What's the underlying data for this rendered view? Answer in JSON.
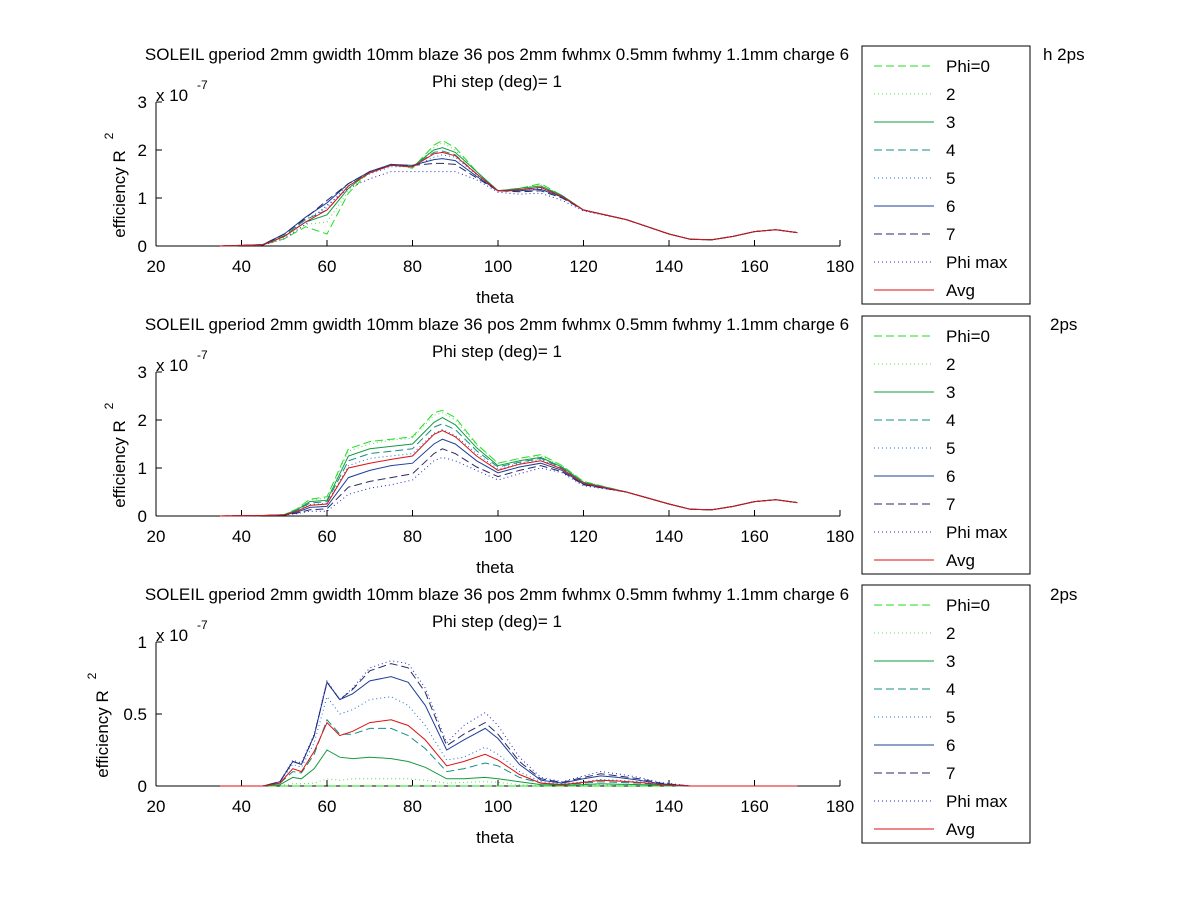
{
  "figure": {
    "background": "#ffffff"
  },
  "legend_entries": [
    "Phi=0",
    "2",
    "3",
    "4",
    "5",
    "6",
    "7",
    "Phi max",
    "Avg"
  ],
  "series_styles": [
    {
      "color": "#22dd22",
      "dash": "8,4"
    },
    {
      "color": "#55dd55",
      "dash": "1,3"
    },
    {
      "color": "#129b40",
      "dash": ""
    },
    {
      "color": "#158f84",
      "dash": "8,4"
    },
    {
      "color": "#1a6fd8",
      "dash": "1,3"
    },
    {
      "color": "#1c3f99",
      "dash": ""
    },
    {
      "color": "#2a2a66",
      "dash": "8,4"
    },
    {
      "color": "#1d2bc6",
      "dash": "1,3"
    },
    {
      "color": "#dd1111",
      "dash": ""
    }
  ],
  "chart_data": [
    {
      "type": "line",
      "title": "SOLEIL gperiod 2mm gwidth 10mm blaze 36 pos 2mm fwhmx 0.5mm fwhmy 1.1mm charge 6",
      "title_tail": "h 2ps",
      "subtitle": "Phi step (deg)= 1",
      "xlabel": "theta",
      "ylabel": "efficiency R",
      "ylabel_sup": "2",
      "exponent_label": "x 10",
      "exponent_sup": "-7",
      "xlim": [
        20,
        180
      ],
      "ylim": [
        0,
        3
      ],
      "xticks": [
        20,
        40,
        60,
        80,
        100,
        120,
        140,
        160,
        180
      ],
      "yticks": [
        0,
        1,
        2,
        3
      ],
      "ytick_labels": [
        "0",
        "1",
        "2",
        "3"
      ],
      "x": [
        35,
        45,
        50,
        55,
        60,
        65,
        70,
        75,
        80,
        85,
        87,
        90,
        95,
        100,
        105,
        110,
        115,
        120,
        130,
        140,
        145,
        150,
        155,
        160,
        165,
        170
      ],
      "series": [
        {
          "values": [
            0,
            0.02,
            0.15,
            0.4,
            0.25,
            1.1,
            1.55,
            1.7,
            1.62,
            2.1,
            2.2,
            2.05,
            1.55,
            1.15,
            1.2,
            1.3,
            1.05,
            0.75,
            0.55,
            0.25,
            0.14,
            0.13,
            0.2,
            0.3,
            0.34,
            0.28
          ]
        },
        {
          "values": [
            0,
            0.02,
            0.18,
            0.45,
            0.5,
            1.15,
            1.55,
            1.7,
            1.62,
            2.05,
            2.15,
            2.0,
            1.55,
            1.15,
            1.2,
            1.28,
            1.05,
            0.75,
            0.55,
            0.25,
            0.14,
            0.13,
            0.2,
            0.3,
            0.34,
            0.28
          ]
        },
        {
          "values": [
            0,
            0.02,
            0.2,
            0.5,
            0.65,
            1.2,
            1.55,
            1.68,
            1.65,
            2.0,
            2.05,
            1.95,
            1.55,
            1.15,
            1.2,
            1.25,
            1.05,
            0.75,
            0.55,
            0.25,
            0.14,
            0.13,
            0.2,
            0.3,
            0.34,
            0.28
          ]
        },
        {
          "values": [
            0,
            0.02,
            0.22,
            0.55,
            0.75,
            1.25,
            1.55,
            1.7,
            1.65,
            1.95,
            1.98,
            1.9,
            1.5,
            1.15,
            1.18,
            1.22,
            1.05,
            0.75,
            0.55,
            0.25,
            0.14,
            0.13,
            0.2,
            0.3,
            0.34,
            0.28
          ]
        },
        {
          "values": [
            0,
            0.02,
            0.2,
            0.55,
            0.8,
            1.3,
            1.5,
            1.65,
            1.65,
            1.85,
            1.9,
            1.85,
            1.48,
            1.15,
            1.15,
            1.2,
            1.02,
            0.75,
            0.55,
            0.25,
            0.14,
            0.13,
            0.2,
            0.3,
            0.34,
            0.28
          ]
        },
        {
          "values": [
            0,
            0.03,
            0.25,
            0.6,
            0.9,
            1.3,
            1.55,
            1.7,
            1.68,
            1.8,
            1.82,
            1.78,
            1.45,
            1.15,
            1.15,
            1.18,
            1.02,
            0.75,
            0.55,
            0.25,
            0.14,
            0.13,
            0.2,
            0.3,
            0.34,
            0.28
          ]
        },
        {
          "values": [
            0,
            0.03,
            0.25,
            0.58,
            0.95,
            1.3,
            1.55,
            1.68,
            1.68,
            1.72,
            1.72,
            1.7,
            1.42,
            1.15,
            1.13,
            1.15,
            1.0,
            0.75,
            0.55,
            0.25,
            0.14,
            0.13,
            0.2,
            0.3,
            0.34,
            0.28
          ]
        },
        {
          "values": [
            0,
            0.02,
            0.15,
            0.45,
            0.85,
            1.2,
            1.4,
            1.55,
            1.55,
            1.55,
            1.55,
            1.55,
            1.38,
            1.12,
            1.08,
            1.1,
            0.95,
            0.73,
            0.55,
            0.25,
            0.14,
            0.13,
            0.2,
            0.3,
            0.34,
            0.28
          ]
        },
        {
          "values": [
            0,
            0.02,
            0.2,
            0.5,
            0.75,
            1.25,
            1.52,
            1.68,
            1.65,
            1.92,
            1.95,
            1.88,
            1.5,
            1.15,
            1.17,
            1.22,
            1.03,
            0.75,
            0.55,
            0.25,
            0.14,
            0.13,
            0.2,
            0.3,
            0.34,
            0.28
          ]
        }
      ]
    },
    {
      "type": "line",
      "title": "SOLEIL gperiod 2mm gwidth 10mm blaze 36 pos 2mm fwhmx 0.5mm fwhmy 1.1mm charge 6",
      "title_tail": "2ps",
      "subtitle": "Phi step (deg)= 1",
      "xlabel": "theta",
      "ylabel": "efficiency R",
      "ylabel_sup": "2",
      "exponent_label": "x 10",
      "exponent_sup": "-7",
      "xlim": [
        20,
        180
      ],
      "ylim": [
        0,
        3
      ],
      "xticks": [
        20,
        40,
        60,
        80,
        100,
        120,
        140,
        160,
        180
      ],
      "yticks": [
        0,
        1,
        2,
        3
      ],
      "ytick_labels": [
        "0",
        "1",
        "2",
        "3"
      ],
      "x": [
        35,
        45,
        50,
        53,
        56,
        60,
        65,
        70,
        75,
        80,
        85,
        87,
        90,
        95,
        100,
        105,
        110,
        115,
        120,
        130,
        140,
        145,
        150,
        155,
        160,
        165,
        170
      ],
      "series": [
        {
          "values": [
            0,
            0.01,
            0.03,
            0.15,
            0.35,
            0.4,
            1.4,
            1.55,
            1.6,
            1.65,
            2.15,
            2.2,
            2.05,
            1.5,
            1.1,
            1.2,
            1.28,
            1.05,
            0.72,
            0.5,
            0.25,
            0.14,
            0.13,
            0.2,
            0.3,
            0.34,
            0.28
          ]
        },
        {
          "values": [
            0,
            0.01,
            0.03,
            0.15,
            0.33,
            0.38,
            1.35,
            1.5,
            1.58,
            1.62,
            2.1,
            2.15,
            2.0,
            1.48,
            1.1,
            1.2,
            1.25,
            1.05,
            0.72,
            0.5,
            0.25,
            0.14,
            0.13,
            0.2,
            0.3,
            0.34,
            0.28
          ]
        },
        {
          "values": [
            0,
            0.01,
            0.03,
            0.13,
            0.3,
            0.33,
            1.25,
            1.4,
            1.45,
            1.5,
            1.95,
            2.05,
            1.9,
            1.42,
            1.05,
            1.15,
            1.22,
            1.02,
            0.7,
            0.5,
            0.25,
            0.14,
            0.13,
            0.2,
            0.3,
            0.34,
            0.28
          ]
        },
        {
          "values": [
            0,
            0.01,
            0.02,
            0.12,
            0.27,
            0.3,
            1.15,
            1.3,
            1.35,
            1.4,
            1.85,
            1.92,
            1.8,
            1.36,
            1.02,
            1.12,
            1.2,
            1.0,
            0.7,
            0.5,
            0.25,
            0.14,
            0.13,
            0.2,
            0.3,
            0.34,
            0.28
          ]
        },
        {
          "values": [
            0,
            0.01,
            0.02,
            0.1,
            0.24,
            0.26,
            1.05,
            1.2,
            1.25,
            1.3,
            1.72,
            1.8,
            1.68,
            1.3,
            0.98,
            1.1,
            1.18,
            0.98,
            0.68,
            0.5,
            0.25,
            0.14,
            0.13,
            0.2,
            0.3,
            0.34,
            0.28
          ]
        },
        {
          "values": [
            0,
            0.01,
            0.02,
            0.08,
            0.18,
            0.2,
            0.8,
            0.95,
            1.05,
            1.1,
            1.5,
            1.6,
            1.5,
            1.15,
            0.9,
            1.02,
            1.1,
            0.95,
            0.66,
            0.5,
            0.25,
            0.14,
            0.13,
            0.2,
            0.3,
            0.34,
            0.28
          ]
        },
        {
          "values": [
            0,
            0.01,
            0.02,
            0.06,
            0.13,
            0.15,
            0.6,
            0.72,
            0.8,
            0.88,
            1.3,
            1.4,
            1.3,
            1.02,
            0.82,
            0.95,
            1.05,
            0.92,
            0.65,
            0.5,
            0.25,
            0.14,
            0.13,
            0.2,
            0.3,
            0.34,
            0.28
          ]
        },
        {
          "values": [
            0,
            0.01,
            0.02,
            0.05,
            0.1,
            0.1,
            0.45,
            0.58,
            0.65,
            0.75,
            1.15,
            1.22,
            1.15,
            0.95,
            0.75,
            0.88,
            1.0,
            0.9,
            0.63,
            0.5,
            0.25,
            0.14,
            0.13,
            0.2,
            0.3,
            0.34,
            0.28
          ]
        },
        {
          "values": [
            0,
            0.01,
            0.02,
            0.1,
            0.22,
            0.25,
            1.0,
            1.1,
            1.18,
            1.25,
            1.7,
            1.78,
            1.65,
            1.25,
            0.95,
            1.08,
            1.15,
            0.98,
            0.68,
            0.5,
            0.25,
            0.14,
            0.13,
            0.2,
            0.3,
            0.34,
            0.28
          ]
        }
      ]
    },
    {
      "type": "line",
      "title": "SOLEIL gperiod 2mm gwidth 10mm blaze 36 pos 2mm fwhmx 0.5mm fwhmy 1.1mm charge 6",
      "title_tail": "2ps",
      "subtitle": "Phi step (deg)= 1",
      "xlabel": "theta",
      "ylabel": "efficiency R",
      "ylabel_sup": "2",
      "exponent_label": "x 10",
      "exponent_sup": "-7",
      "xlim": [
        20,
        180
      ],
      "ylim": [
        0,
        1
      ],
      "xticks": [
        20,
        40,
        60,
        80,
        100,
        120,
        140,
        160,
        180
      ],
      "yticks": [
        0,
        0.5,
        1
      ],
      "ytick_labels": [
        "0",
        "0.5",
        "1"
      ],
      "x": [
        35,
        45,
        49,
        52,
        54,
        57,
        60,
        63,
        66,
        70,
        75,
        79,
        83,
        88,
        92,
        97,
        100,
        105,
        110,
        115,
        120,
        124,
        128,
        133,
        138,
        145,
        155,
        165,
        170
      ],
      "series": [
        {
          "values": [
            0,
            0,
            0,
            0,
            0,
            0,
            0,
            0,
            0,
            0,
            0,
            0,
            0,
            0,
            0,
            0,
            0,
            0,
            0,
            0,
            0,
            0,
            0,
            0,
            0,
            0,
            0,
            0,
            0
          ]
        },
        {
          "values": [
            0,
            0,
            0.005,
            0.015,
            0.015,
            0.02,
            0.05,
            0.04,
            0.05,
            0.05,
            0.05,
            0.05,
            0.04,
            0.02,
            0.025,
            0.03,
            0.025,
            0.01,
            0.003,
            0.003,
            0.005,
            0.007,
            0.006,
            0.005,
            0.003,
            0,
            0,
            0,
            0
          ]
        },
        {
          "values": [
            0,
            0,
            0.01,
            0.06,
            0.05,
            0.12,
            0.25,
            0.2,
            0.19,
            0.2,
            0.19,
            0.17,
            0.13,
            0.05,
            0.05,
            0.06,
            0.05,
            0.03,
            0.01,
            0.005,
            0.01,
            0.015,
            0.012,
            0.01,
            0.005,
            0,
            0,
            0,
            0
          ]
        },
        {
          "values": [
            0,
            0,
            0.02,
            0.1,
            0.09,
            0.22,
            0.46,
            0.36,
            0.36,
            0.4,
            0.4,
            0.35,
            0.26,
            0.1,
            0.12,
            0.16,
            0.14,
            0.06,
            0.02,
            0.01,
            0.02,
            0.03,
            0.025,
            0.02,
            0.008,
            0,
            0,
            0,
            0
          ]
        },
        {
          "values": [
            0,
            0,
            0.03,
            0.15,
            0.13,
            0.3,
            0.62,
            0.5,
            0.53,
            0.6,
            0.62,
            0.56,
            0.42,
            0.18,
            0.2,
            0.27,
            0.22,
            0.1,
            0.03,
            0.015,
            0.03,
            0.045,
            0.04,
            0.03,
            0.012,
            0,
            0,
            0,
            0
          ]
        },
        {
          "values": [
            0,
            0,
            0.03,
            0.17,
            0.15,
            0.35,
            0.72,
            0.6,
            0.64,
            0.73,
            0.76,
            0.72,
            0.56,
            0.25,
            0.32,
            0.4,
            0.33,
            0.15,
            0.04,
            0.02,
            0.05,
            0.07,
            0.06,
            0.04,
            0.015,
            0,
            0,
            0,
            0
          ]
        },
        {
          "values": [
            0,
            0,
            0.03,
            0.17,
            0.15,
            0.35,
            0.72,
            0.6,
            0.67,
            0.8,
            0.85,
            0.82,
            0.65,
            0.28,
            0.36,
            0.44,
            0.36,
            0.17,
            0.05,
            0.025,
            0.06,
            0.085,
            0.07,
            0.05,
            0.02,
            0,
            0,
            0,
            0
          ]
        },
        {
          "values": [
            0,
            0,
            0.03,
            0.18,
            0.16,
            0.36,
            0.73,
            0.6,
            0.68,
            0.82,
            0.87,
            0.85,
            0.68,
            0.3,
            0.42,
            0.51,
            0.42,
            0.2,
            0.06,
            0.03,
            0.07,
            0.1,
            0.085,
            0.06,
            0.025,
            0,
            0,
            0,
            0
          ]
        },
        {
          "values": [
            0,
            0,
            0.02,
            0.12,
            0.1,
            0.24,
            0.44,
            0.35,
            0.38,
            0.44,
            0.46,
            0.42,
            0.32,
            0.14,
            0.17,
            0.22,
            0.18,
            0.08,
            0.02,
            0.01,
            0.025,
            0.04,
            0.035,
            0.025,
            0.01,
            0,
            0,
            0,
            0
          ]
        }
      ]
    }
  ]
}
